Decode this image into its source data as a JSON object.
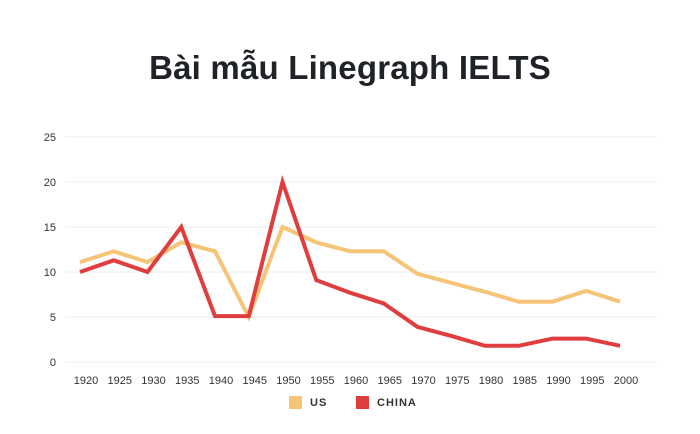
{
  "title": "Bài mẫu Linegraph IELTS",
  "colors": {
    "us": "#F6C477",
    "china": "#E03E3E",
    "grid": "#ececec",
    "title": "#1f2328"
  },
  "legend": [
    {
      "label": "US",
      "color": "#F6C477"
    },
    {
      "label": "CHINA",
      "color": "#E03E3E"
    }
  ],
  "chart_data": {
    "type": "line",
    "title": "Bài mẫu Linegraph IELTS",
    "xlabel": "",
    "ylabel": "",
    "categories": [
      "1920",
      "1925",
      "1930",
      "1935",
      "1940",
      "1945",
      "1950",
      "1955",
      "1960",
      "1965",
      "1970",
      "1975",
      "1980",
      "1985",
      "1990",
      "1995",
      "2000"
    ],
    "series": [
      {
        "name": "US",
        "color": "#F6C477",
        "values": [
          11.1,
          12.3,
          11.1,
          13.3,
          12.3,
          5.0,
          15.0,
          13.3,
          12.3,
          12.3,
          9.8,
          8.8,
          7.8,
          6.7,
          6.7,
          7.9,
          6.7
        ]
      },
      {
        "name": "CHINA",
        "color": "#E03E3E",
        "values": [
          10.0,
          11.3,
          10.0,
          15.0,
          5.1,
          5.1,
          20.0,
          9.1,
          7.7,
          6.5,
          3.9,
          2.9,
          1.8,
          1.8,
          2.6,
          2.6,
          1.8
        ]
      }
    ],
    "yticks": [
      0,
      5,
      10,
      15,
      20,
      25
    ],
    "ylim": [
      0,
      25
    ],
    "grid": true,
    "legend_position": "bottom"
  }
}
